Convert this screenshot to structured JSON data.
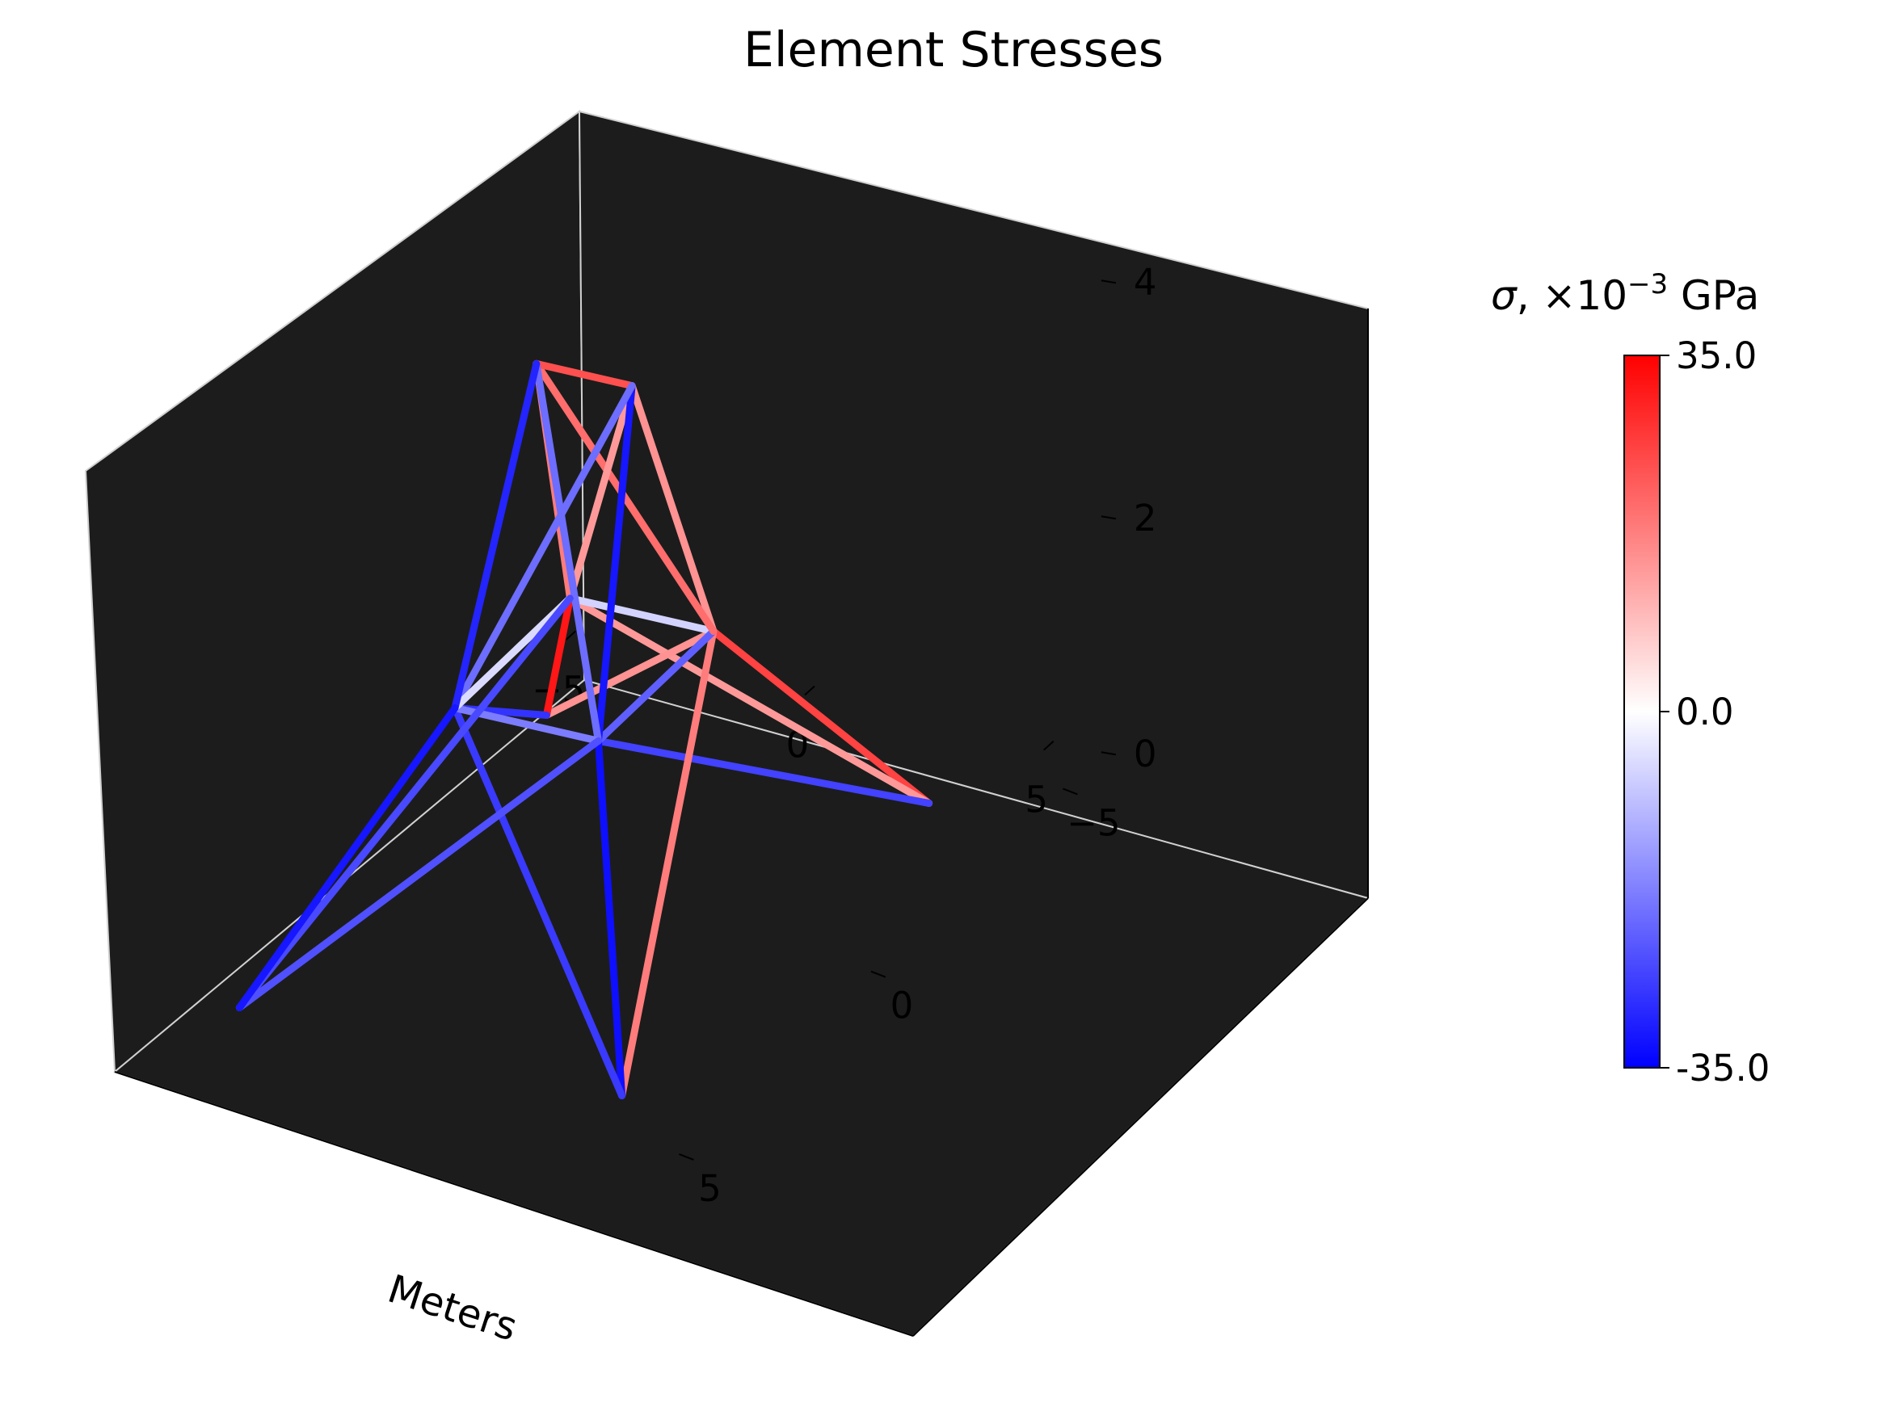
{
  "chart_data": {
    "type": "3d-line",
    "title": "Element Stresses",
    "xlabel": "Meters",
    "ylabel": "",
    "zlabel": "",
    "x_ticks": [
      -5,
      0,
      5
    ],
    "y_ticks": [
      -5,
      0,
      5
    ],
    "z_ticks": [
      0,
      2,
      4
    ],
    "x_tick_labels": [
      "−5",
      "0",
      "5"
    ],
    "y_tick_labels": [
      "−5",
      "0",
      "5"
    ],
    "z_tick_labels": [
      "0",
      "2",
      "4"
    ],
    "xlim": [
      -6,
      6
    ],
    "ylim": [
      -6,
      6
    ],
    "zlim": [
      0,
      5
    ],
    "pane_color": "#1c1c1c",
    "colorbar": {
      "title_symbol": "σ",
      "title_rest": ", ×10",
      "title_exp": "−3",
      "title_unit": " GPa",
      "min": -35.0,
      "max": 35.0,
      "tick_labels": [
        "35.0",
        "0.0",
        "-35.0"
      ],
      "colormap": [
        "#0000ff",
        "#ffffff",
        "#ff0000"
      ]
    },
    "nodes": [
      {
        "id": 1,
        "x": -4,
        "y": -4,
        "z": 0
      },
      {
        "id": 2,
        "x": 4,
        "y": -4,
        "z": 0
      },
      {
        "id": 3,
        "x": 4,
        "y": 4,
        "z": 0
      },
      {
        "id": 4,
        "x": -4,
        "y": 4,
        "z": 0
      },
      {
        "id": 5,
        "x": -1.5,
        "y": -1.5,
        "z": 2
      },
      {
        "id": 6,
        "x": 1.5,
        "y": -1.5,
        "z": 2
      },
      {
        "id": 7,
        "x": 1.5,
        "y": 1.5,
        "z": 2
      },
      {
        "id": 8,
        "x": -1.5,
        "y": 1.5,
        "z": 2
      },
      {
        "id": 9,
        "x": -1,
        "y": 0,
        "z": 4.5
      },
      {
        "id": 10,
        "x": 1,
        "y": 0,
        "z": 4.5
      }
    ],
    "elements": [
      {
        "from": 1,
        "to": 5,
        "stress": 32
      },
      {
        "from": 1,
        "to": 6,
        "stress": 15
      },
      {
        "from": 1,
        "to": 8,
        "stress": -28
      },
      {
        "from": 2,
        "to": 5,
        "stress": 14
      },
      {
        "from": 2,
        "to": 6,
        "stress": 26
      },
      {
        "from": 2,
        "to": 7,
        "stress": -26
      },
      {
        "from": 3,
        "to": 6,
        "stress": 18
      },
      {
        "from": 3,
        "to": 7,
        "stress": -33
      },
      {
        "from": 3,
        "to": 8,
        "stress": -27
      },
      {
        "from": 4,
        "to": 5,
        "stress": -25
      },
      {
        "from": 4,
        "to": 8,
        "stress": -32
      },
      {
        "from": 4,
        "to": 7,
        "stress": -24
      },
      {
        "from": 5,
        "to": 6,
        "stress": -6
      },
      {
        "from": 6,
        "to": 7,
        "stress": -22
      },
      {
        "from": 7,
        "to": 8,
        "stress": -18
      },
      {
        "from": 8,
        "to": 5,
        "stress": -5
      },
      {
        "from": 5,
        "to": 9,
        "stress": 18
      },
      {
        "from": 5,
        "to": 10,
        "stress": 14
      },
      {
        "from": 6,
        "to": 9,
        "stress": 20
      },
      {
        "from": 6,
        "to": 10,
        "stress": 15
      },
      {
        "from": 7,
        "to": 9,
        "stress": -20
      },
      {
        "from": 7,
        "to": 10,
        "stress": -32
      },
      {
        "from": 8,
        "to": 9,
        "stress": -30
      },
      {
        "from": 8,
        "to": 10,
        "stress": -20
      },
      {
        "from": 9,
        "to": 10,
        "stress": 24
      }
    ]
  }
}
